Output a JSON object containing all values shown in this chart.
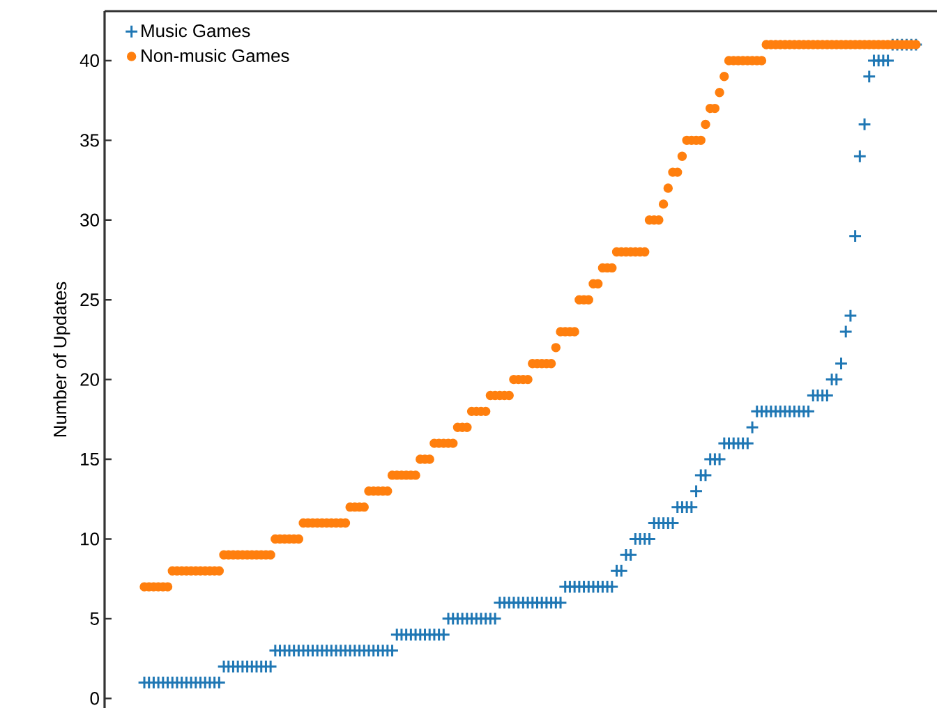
{
  "chart_data": {
    "type": "scatter",
    "ylabel": "Number of Updates",
    "categories": [
      null,
      null,
      null,
      null,
      null,
      null,
      null,
      null,
      null,
      null,
      null,
      null,
      null,
      null,
      null,
      null,
      null,
      null,
      null,
      null,
      null,
      null,
      null,
      null,
      null,
      null,
      null,
      null,
      null,
      null,
      null,
      null,
      null,
      null,
      null,
      null,
      null,
      null,
      null,
      null,
      null,
      null,
      null,
      null,
      null,
      null,
      null,
      null,
      null,
      null,
      null,
      null,
      null,
      null,
      null,
      null,
      null,
      null,
      null,
      null,
      null,
      null,
      null,
      null,
      null,
      null,
      null,
      null,
      null,
      null,
      null,
      null,
      null,
      null,
      null,
      null,
      null,
      null,
      null,
      null,
      null,
      null,
      null,
      null,
      null,
      null,
      null,
      null,
      null,
      null,
      null,
      null,
      null,
      null,
      null,
      null,
      null,
      null,
      null,
      null,
      null,
      null,
      null,
      null,
      null,
      null,
      null,
      null,
      null,
      null,
      null,
      null,
      null,
      null,
      null,
      null,
      null,
      null,
      null,
      null,
      null,
      null,
      null,
      null,
      null,
      null,
      null,
      null,
      null,
      null,
      null,
      null,
      null,
      null,
      null,
      null,
      null,
      null,
      null,
      null,
      null,
      null,
      null,
      null,
      null,
      null,
      null,
      null,
      null,
      null,
      null,
      null,
      null,
      null,
      null,
      null,
      null,
      null,
      null,
      null,
      null,
      null,
      null,
      null,
      null,
      null,
      null,
      null,
      null,
      null,
      null,
      null,
      null,
      null,
      null,
      null,
      null,
      null
    ],
    "series": [
      {
        "name": "Music Games",
        "color": "#1f77b4",
        "marker": "cross",
        "values": [
          null,
          null,
          null,
          null,
          null,
          null,
          null,
          null,
          1,
          1,
          1,
          1,
          1,
          1,
          1,
          1,
          1,
          1,
          1,
          1,
          1,
          1,
          1,
          1,
          1,
          2,
          2,
          2,
          2,
          2,
          2,
          2,
          2,
          2,
          2,
          2,
          3,
          3,
          3,
          3,
          3,
          3,
          3,
          3,
          3,
          3,
          3,
          3,
          3,
          3,
          3,
          3,
          3,
          3,
          3,
          3,
          3,
          3,
          3,
          3,
          3,
          3,
          4,
          4,
          4,
          4,
          4,
          4,
          4,
          4,
          4,
          4,
          4,
          5,
          5,
          5,
          5,
          5,
          5,
          5,
          5,
          5,
          5,
          5,
          6,
          6,
          6,
          6,
          6,
          6,
          6,
          6,
          6,
          6,
          6,
          6,
          6,
          6,
          7,
          7,
          7,
          7,
          7,
          7,
          7,
          7,
          7,
          7,
          7,
          8,
          8,
          9,
          9,
          10,
          10,
          10,
          10,
          11,
          11,
          11,
          11,
          11,
          12,
          12,
          12,
          12,
          13,
          14,
          14,
          15,
          15,
          15,
          16,
          16,
          16,
          16,
          16,
          16,
          17,
          18,
          18,
          18,
          18,
          18,
          18,
          18,
          18,
          18,
          18,
          18,
          18,
          19,
          19,
          19,
          19,
          20,
          20,
          21,
          23,
          24,
          29,
          34,
          36,
          39,
          40,
          40,
          40,
          40,
          41,
          41,
          41,
          41,
          41,
          41,
          null,
          null,
          null,
          null
        ]
      },
      {
        "name": "Non-music Games",
        "color": "#ff7f0e",
        "marker": "circle",
        "values": [
          null,
          null,
          null,
          null,
          null,
          null,
          null,
          null,
          7,
          7,
          7,
          7,
          7,
          7,
          8,
          8,
          8,
          8,
          8,
          8,
          8,
          8,
          8,
          8,
          8,
          9,
          9,
          9,
          9,
          9,
          9,
          9,
          9,
          9,
          9,
          9,
          10,
          10,
          10,
          10,
          10,
          10,
          11,
          11,
          11,
          11,
          11,
          11,
          11,
          11,
          11,
          11,
          12,
          12,
          12,
          12,
          13,
          13,
          13,
          13,
          13,
          14,
          14,
          14,
          14,
          14,
          14,
          15,
          15,
          15,
          16,
          16,
          16,
          16,
          16,
          17,
          17,
          17,
          18,
          18,
          18,
          18,
          19,
          19,
          19,
          19,
          19,
          20,
          20,
          20,
          20,
          21,
          21,
          21,
          21,
          21,
          22,
          23,
          23,
          23,
          23,
          25,
          25,
          25,
          26,
          26,
          27,
          27,
          27,
          28,
          28,
          28,
          28,
          28,
          28,
          28,
          30,
          30,
          30,
          31,
          32,
          33,
          33,
          34,
          35,
          35,
          35,
          35,
          36,
          37,
          37,
          38,
          39,
          40,
          40,
          40,
          40,
          40,
          40,
          40,
          40,
          41,
          41,
          41,
          41,
          41,
          41,
          41,
          41,
          41,
          41,
          41,
          41,
          41,
          41,
          41,
          41,
          41,
          41,
          41,
          41,
          41,
          41,
          41,
          41,
          41,
          41,
          41,
          41,
          41,
          41,
          41,
          41,
          41,
          null,
          null,
          null,
          null
        ]
      }
    ],
    "ylim": [
      -0.6,
      43.1
    ],
    "yticks": [
      0,
      5,
      10,
      15,
      20,
      25,
      30,
      35,
      40
    ],
    "tick_labels": "y",
    "legend": "top left"
  }
}
